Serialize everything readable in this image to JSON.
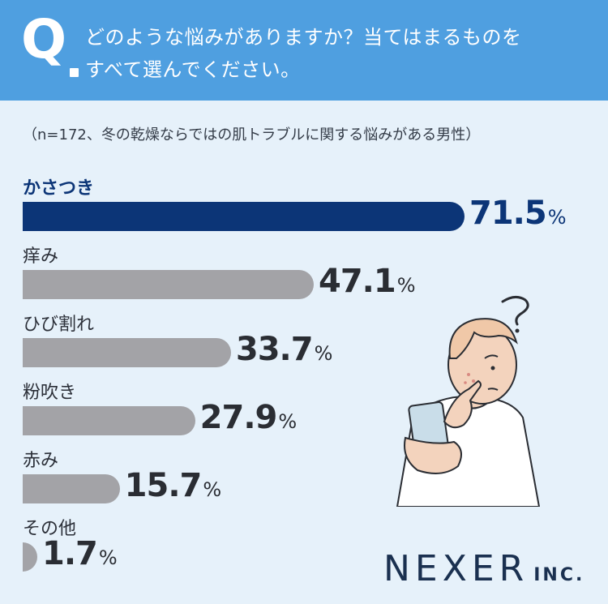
{
  "header": {
    "q": "Q",
    "question_lines": [
      "どのような悩みがありますか？当てはまるものを",
      "すべて選んでください。"
    ]
  },
  "note": "（n=172、冬の乾燥ならではの肌トラブルに関する悩みがある男性）",
  "colors": {
    "header_bg": "#4f9fe0",
    "page_bg": "#e6f1fa",
    "highlight_bar": "#0c3577",
    "other_bar": "#a3a3a7"
  },
  "chart_data": {
    "type": "bar",
    "orientation": "horizontal",
    "categories": [
      "かさつき",
      "痒み",
      "ひび割れ",
      "粉吹き",
      "赤み",
      "その他"
    ],
    "values": [
      71.5,
      47.1,
      33.7,
      27.9,
      15.7,
      1.7
    ],
    "value_labels": [
      "71.5",
      "47.1",
      "33.7",
      "27.9",
      "15.7",
      "1.7"
    ],
    "unit": "%",
    "highlight_index": 0,
    "xlim": [
      0,
      100
    ]
  },
  "logo": {
    "main": "NEXER",
    "suffix": "INC."
  }
}
